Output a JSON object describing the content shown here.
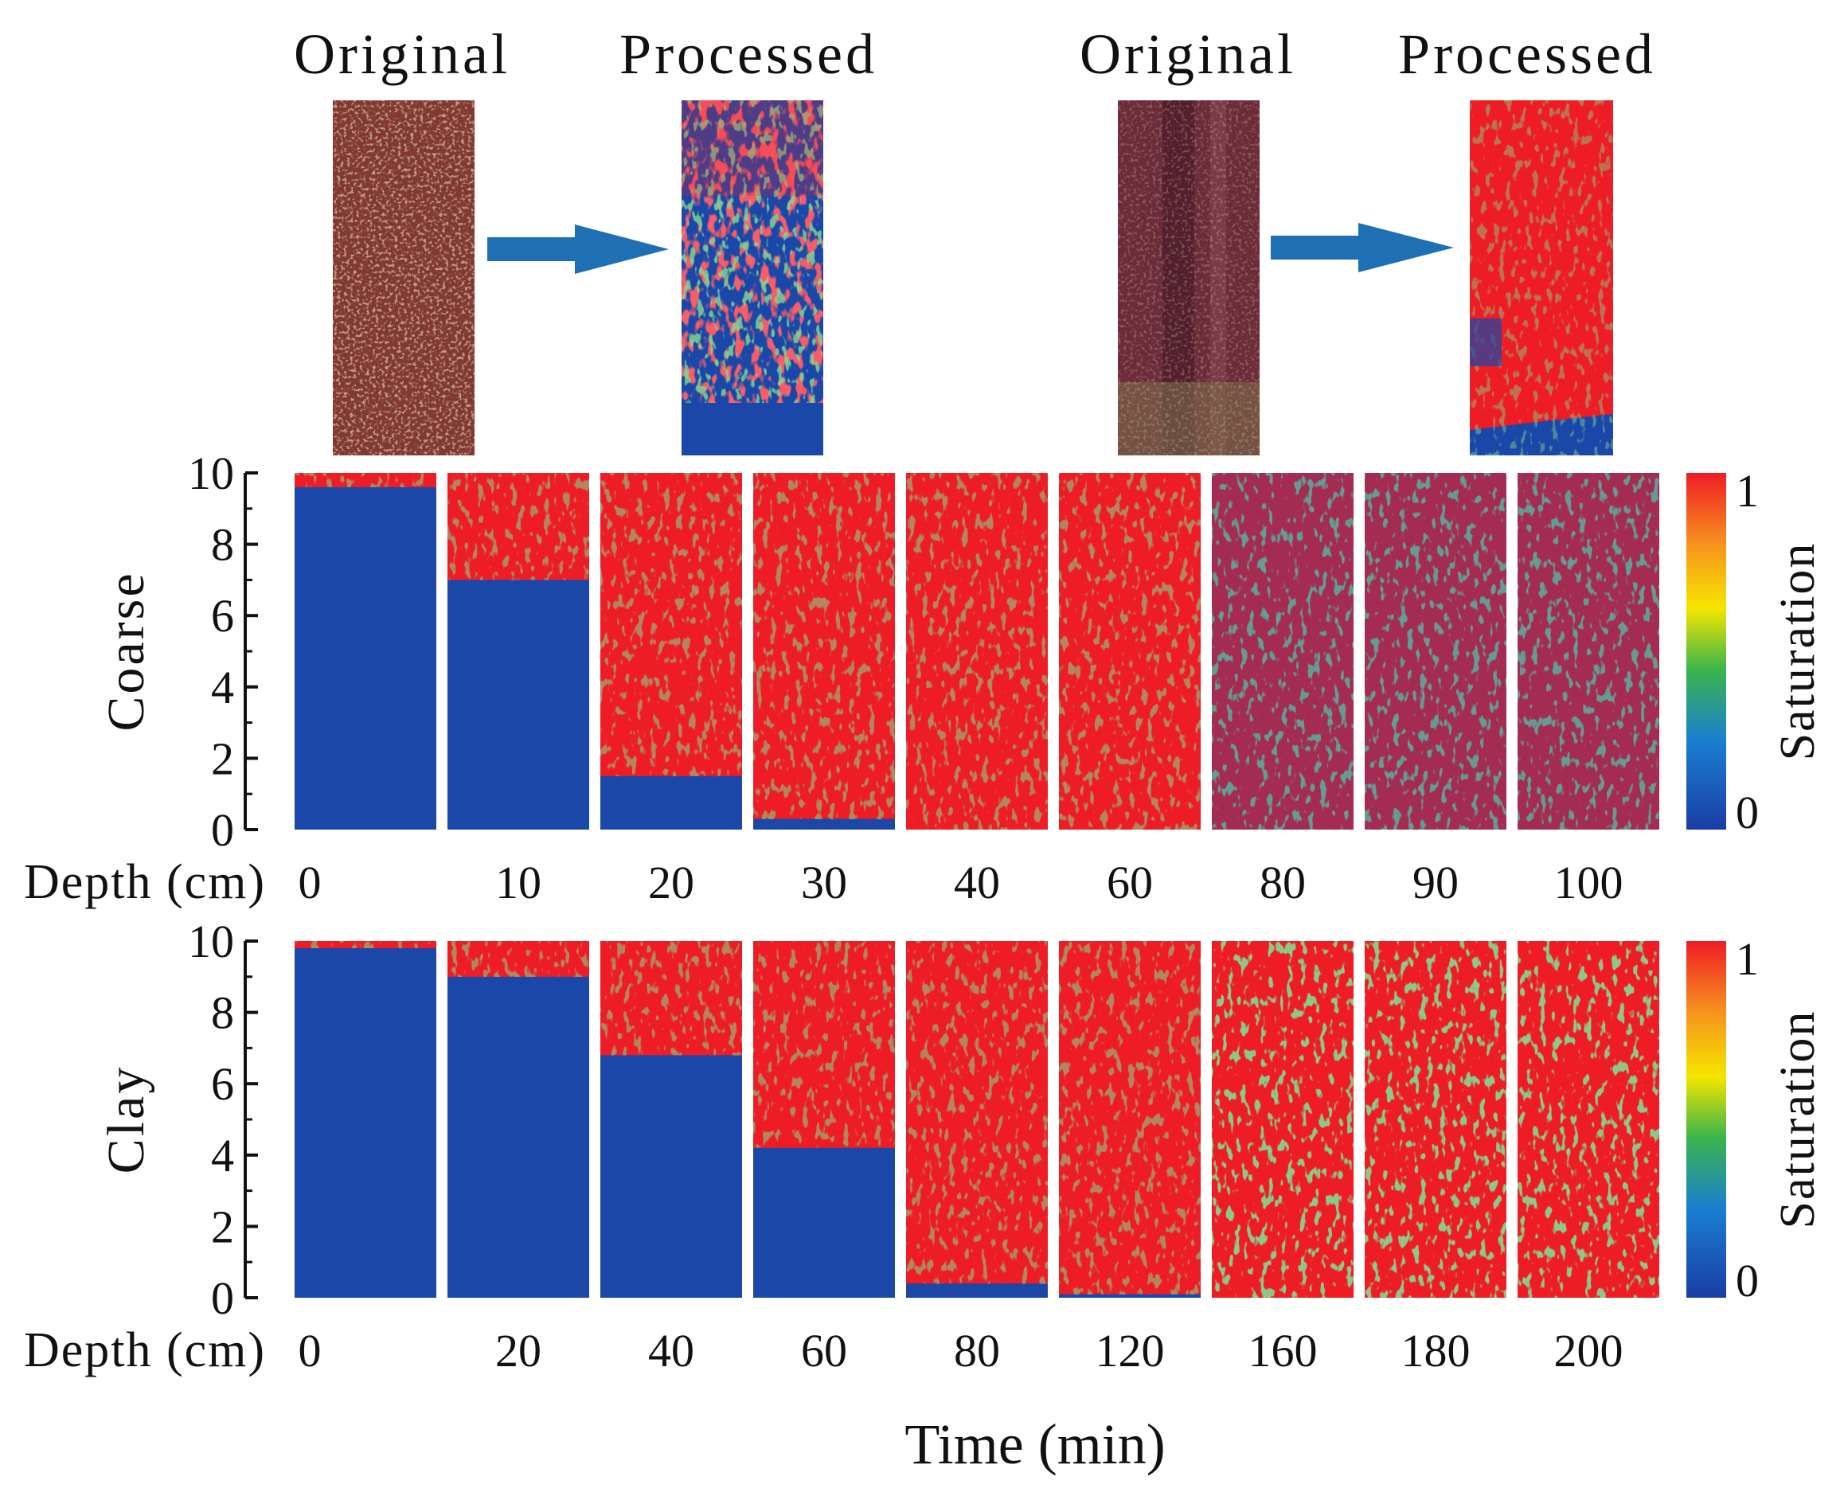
{
  "header": {
    "labels": [
      "Original",
      "Processed",
      "Original",
      "Processed"
    ]
  },
  "panels": [
    {
      "row_label": "Coarse",
      "axis_title": "Depth (cm)",
      "y_ticks": [
        "10",
        "8",
        "6",
        "4",
        "2",
        "0"
      ],
      "times": [
        "0",
        "10",
        "20",
        "30",
        "40",
        "60",
        "80",
        "90",
        "100"
      ],
      "wet_front_depth_cm": [
        9.6,
        7.0,
        1.5,
        0.3,
        0,
        0,
        0,
        0,
        0
      ],
      "colorbar": {
        "max": "1",
        "min": "0",
        "title": "Saturation"
      }
    },
    {
      "row_label": "Clay",
      "axis_title": "Depth (cm)",
      "y_ticks": [
        "10",
        "8",
        "6",
        "4",
        "2",
        "0"
      ],
      "times": [
        "0",
        "20",
        "40",
        "60",
        "80",
        "120",
        "160",
        "180",
        "200"
      ],
      "wet_front_depth_cm": [
        9.8,
        9.0,
        6.8,
        4.2,
        0.4,
        0.1,
        0,
        0,
        0
      ],
      "colorbar": {
        "max": "1",
        "min": "0",
        "title": "Saturation"
      }
    }
  ],
  "x_axis_title": "Time (min)",
  "colors": {
    "dry": "#1a47a8",
    "wet": "#ee1c24",
    "mid_green": "#3bb54a",
    "mid_yellow": "#f5e600",
    "mid_orange": "#f7931e",
    "arrow": "#1f6fb4",
    "core_dark": "#6e2a22",
    "core_light": "#a5524a"
  }
}
